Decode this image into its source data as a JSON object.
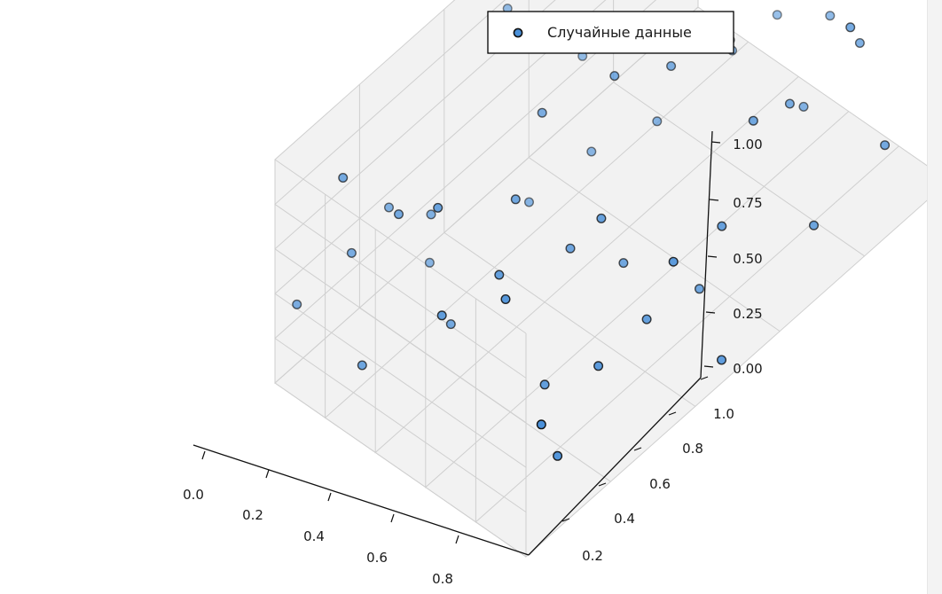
{
  "chart_data": {
    "type": "scatter",
    "projection": "3d",
    "series": [
      {
        "name": "Случайные данные",
        "points": [
          [
            0.02,
            0.04,
            0.3
          ],
          [
            0.05,
            0.52,
            0.84
          ],
          [
            0.03,
            0.88,
            0.18
          ],
          [
            0.06,
            0.33,
            0.03
          ],
          [
            0.04,
            0.72,
            0.68
          ],
          [
            0.1,
            0.21,
            0.51
          ],
          [
            0.12,
            0.11,
            0.49
          ],
          [
            0.15,
            0.28,
            0.4
          ],
          [
            0.18,
            0.62,
            0.56
          ],
          [
            0.17,
            0.06,
            0.95
          ],
          [
            0.22,
            0.47,
            0.19
          ],
          [
            0.24,
            0.15,
            0.69
          ],
          [
            0.26,
            0.85,
            0.64
          ],
          [
            0.28,
            0.04,
            0.23
          ],
          [
            0.3,
            0.57,
            0.31
          ],
          [
            0.33,
            0.22,
            0.15
          ],
          [
            0.35,
            0.93,
            0.78
          ],
          [
            0.37,
            0.74,
            0.92
          ],
          [
            0.39,
            0.4,
            0.84
          ],
          [
            0.41,
            0.66,
            0.38
          ],
          [
            0.43,
            0.13,
            0.9
          ],
          [
            0.45,
            0.92,
            0.45
          ],
          [
            0.47,
            0.29,
            0.7
          ],
          [
            0.49,
            0.79,
            0.54
          ],
          [
            0.51,
            0.5,
            0.93
          ],
          [
            0.53,
            0.08,
            0.58
          ],
          [
            0.55,
            0.61,
            0.82
          ],
          [
            0.57,
            0.36,
            0.44
          ],
          [
            0.59,
            0.18,
            0.64
          ],
          [
            0.61,
            0.95,
            0.52
          ],
          [
            0.63,
            0.45,
            0.27
          ],
          [
            0.65,
            0.69,
            0.88
          ],
          [
            0.67,
            0.24,
            0.11
          ],
          [
            0.69,
            0.84,
            0.36
          ],
          [
            0.71,
            0.35,
            0.7
          ],
          [
            0.73,
            0.57,
            0.03
          ],
          [
            0.75,
            0.1,
            0.79
          ],
          [
            0.77,
            0.76,
            0.57
          ],
          [
            0.79,
            0.41,
            0.21
          ],
          [
            0.81,
            0.65,
            0.71
          ],
          [
            0.83,
            0.89,
            0.67
          ],
          [
            0.85,
            0.26,
            0.3
          ],
          [
            0.87,
            0.54,
            0.47
          ],
          [
            0.89,
            0.14,
            0.13
          ],
          [
            0.91,
            0.82,
            0.92
          ],
          [
            0.93,
            0.39,
            0.61
          ],
          [
            0.95,
            0.71,
            0.25
          ],
          [
            0.96,
            0.06,
            0.46
          ],
          [
            0.97,
            0.48,
            0.05
          ],
          [
            0.98,
            0.86,
            0.38
          ]
        ]
      }
    ],
    "xticks": [
      "0.0",
      "0.2",
      "0.4",
      "0.6",
      "0.8"
    ],
    "yticks": [
      "0.2",
      "0.4",
      "0.6",
      "0.8",
      "1.0"
    ],
    "zticks": [
      "0.00",
      "0.25",
      "0.50",
      "0.75",
      "1.00"
    ],
    "xlim": [
      0,
      1
    ],
    "ylim": [
      0,
      1
    ],
    "zlim": [
      0,
      1
    ],
    "grid": true,
    "legend": {
      "location": "upper-right",
      "labels": [
        "Случайные данные"
      ]
    },
    "colors": {
      "marker_face": "#4a90d9",
      "marker_edge": "#111111",
      "pane_light": "#f2f2f2",
      "pane_mid": "#ebebeb",
      "grid": "#cfcfcf"
    }
  }
}
